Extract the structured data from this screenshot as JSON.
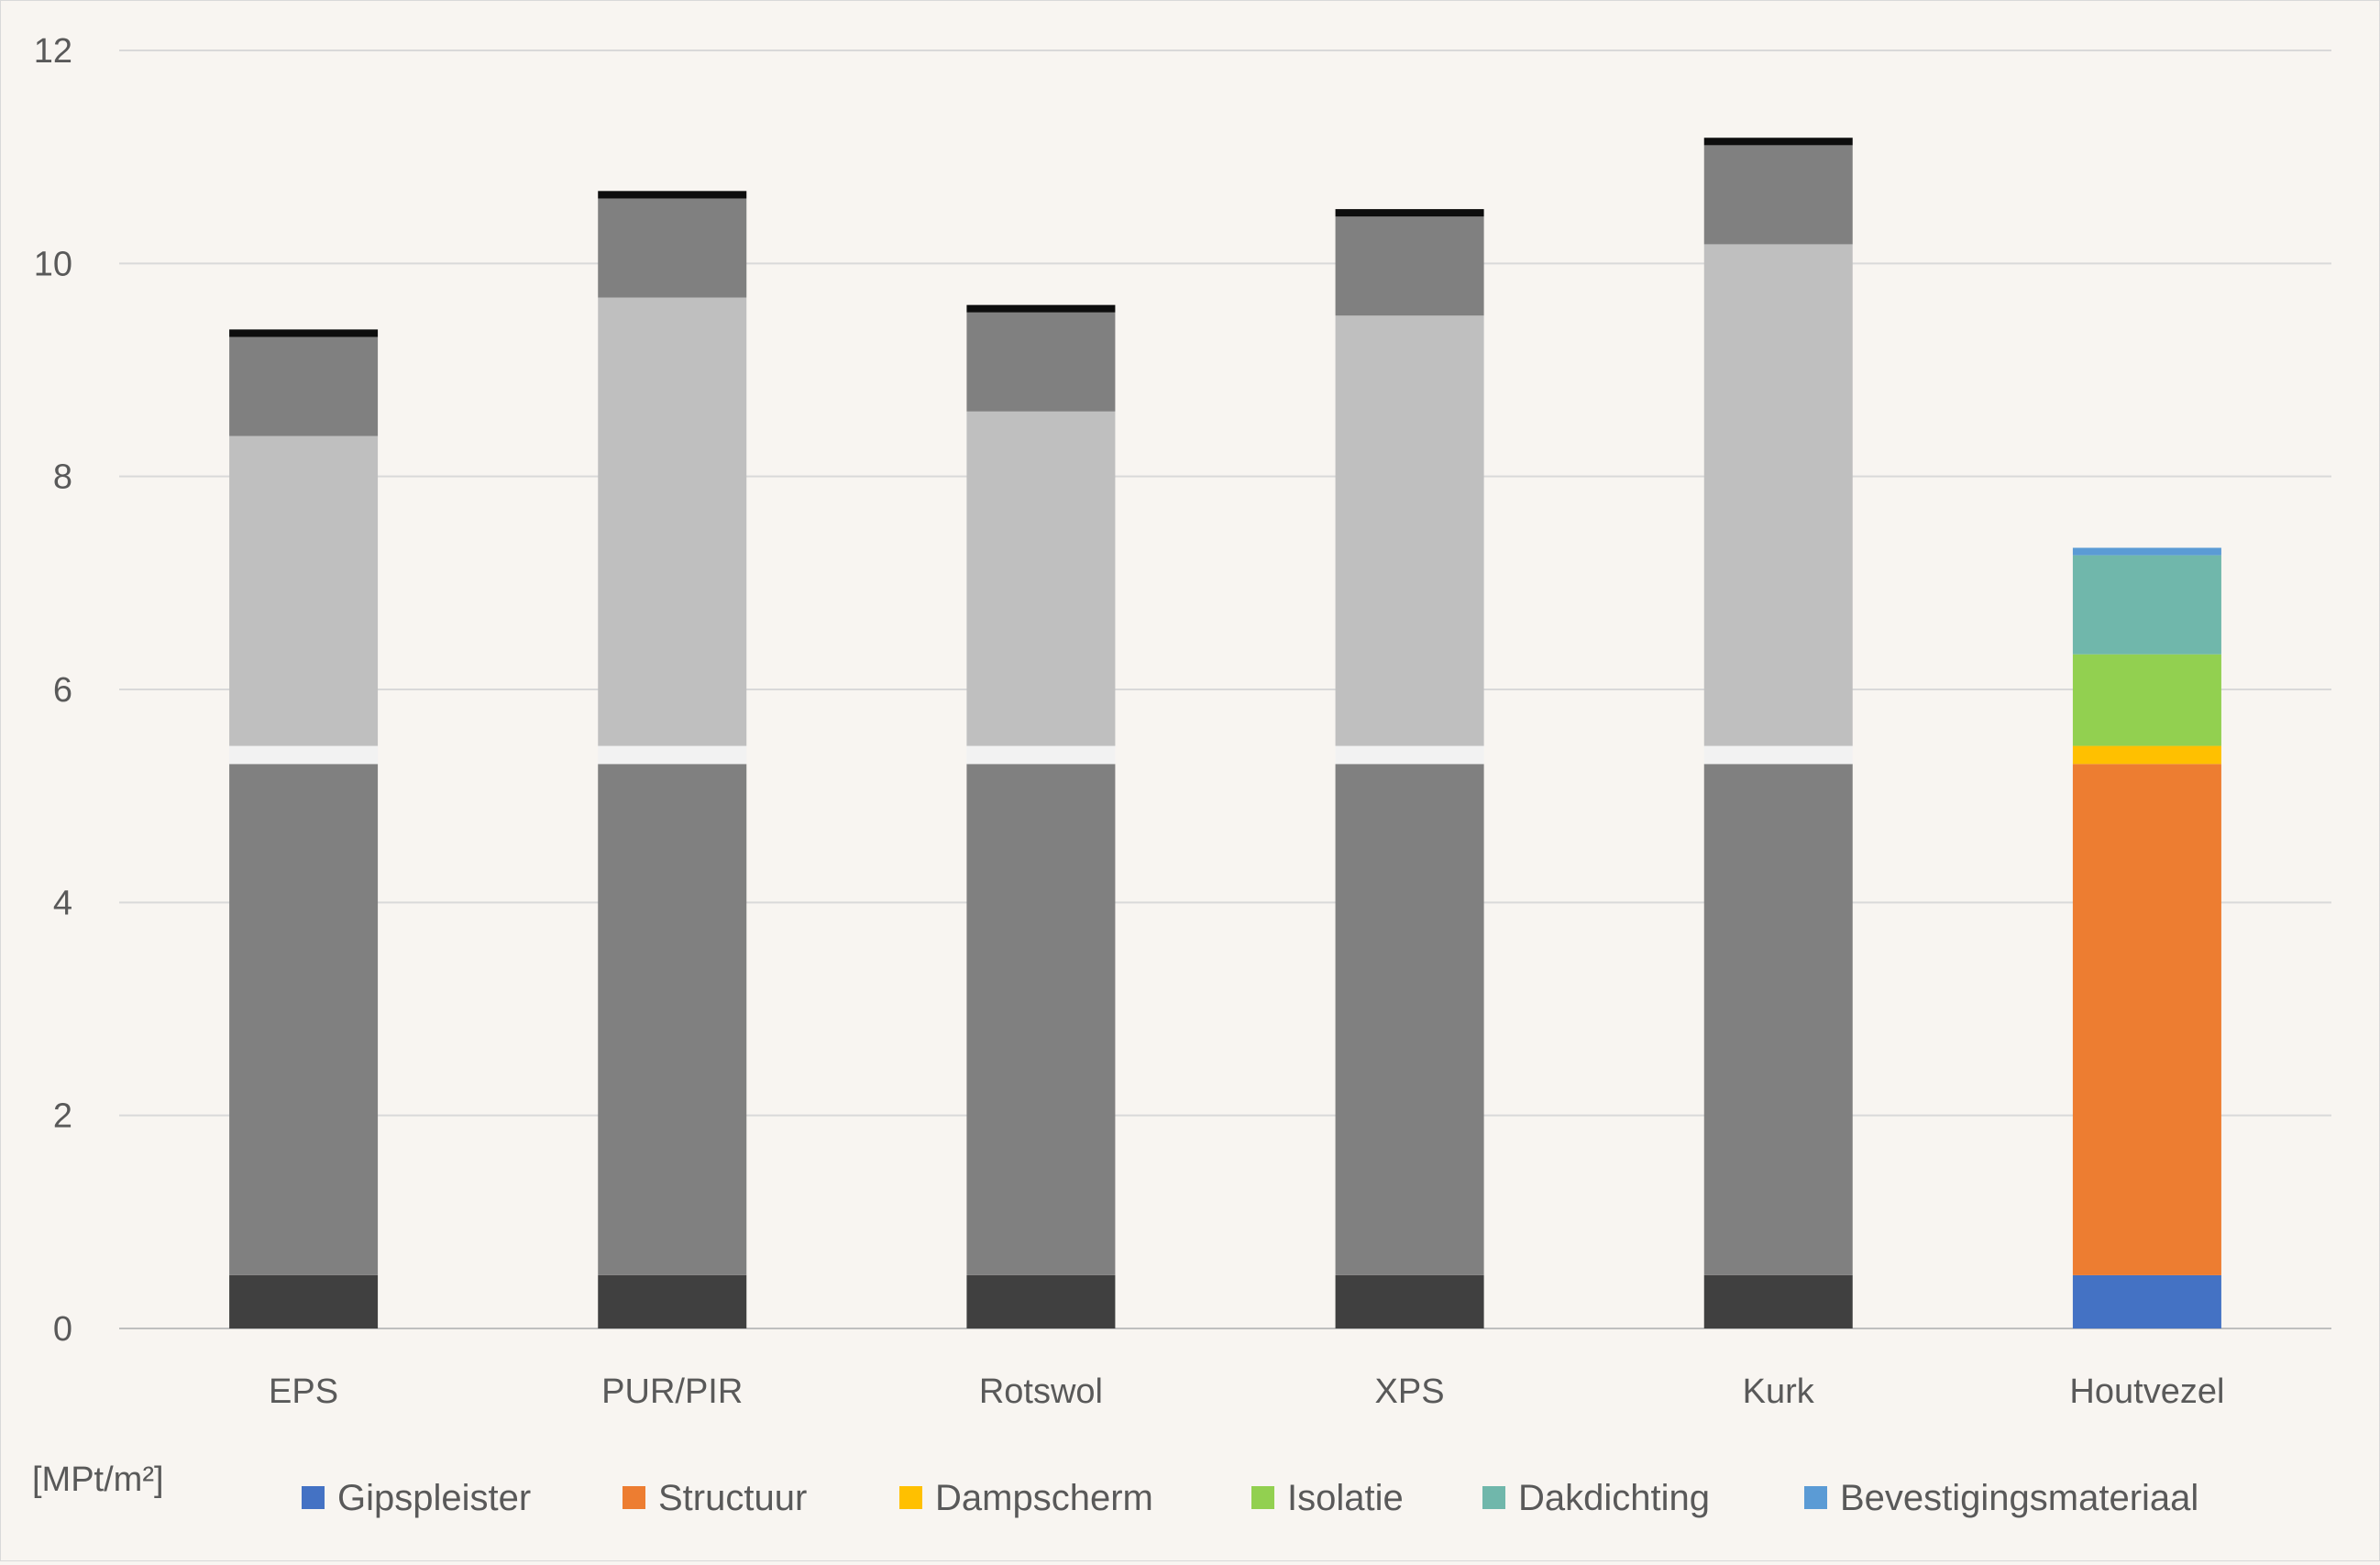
{
  "chart_data": {
    "type": "bar",
    "stacked": true,
    "title": "",
    "xlabel": "",
    "ylabel": "[MPt/m²]",
    "ylim": [
      0,
      12
    ],
    "yticks": [
      "0",
      "2",
      "4",
      "6",
      "8",
      "10",
      "12"
    ],
    "grid": true,
    "legend_position": "bottom",
    "categories": [
      "EPS",
      "PUR/PIR",
      "Rotswol",
      "XPS",
      "Kurk",
      "Houtvezel"
    ],
    "series": [
      {
        "name": "Gipspleister",
        "color": "#4472c4",
        "values": [
          0.5,
          0.5,
          0.5,
          0.5,
          0.5,
          0.5
        ]
      },
      {
        "name": "Structuur",
        "color": "#ed7d31",
        "values": [
          4.8,
          4.8,
          4.8,
          4.8,
          4.8,
          4.8
        ]
      },
      {
        "name": "Dampscherm",
        "color": "#ffc000",
        "values": [
          0.17,
          0.17,
          0.17,
          0.17,
          0.17,
          0.17
        ]
      },
      {
        "name": "Isolatie",
        "color": "#92d050",
        "values": [
          2.91,
          4.21,
          3.14,
          4.04,
          4.71,
          0.86
        ]
      },
      {
        "name": "Dakdichting",
        "color": "#70b7ab",
        "values": [
          0.93,
          0.93,
          0.93,
          0.93,
          0.93,
          0.93
        ]
      },
      {
        "name": "Bevestigingsmateriaal",
        "color": "#5b9bd5",
        "values": [
          0.07,
          0.07,
          0.07,
          0.07,
          0.07,
          0.07
        ]
      }
    ],
    "greyed_colors": [
      "#404040",
      "#808080",
      "#f2f2f2",
      "#bfbfbf",
      "#808080",
      "#0d0d0d"
    ],
    "highlighted_category": "Houtvezel"
  }
}
